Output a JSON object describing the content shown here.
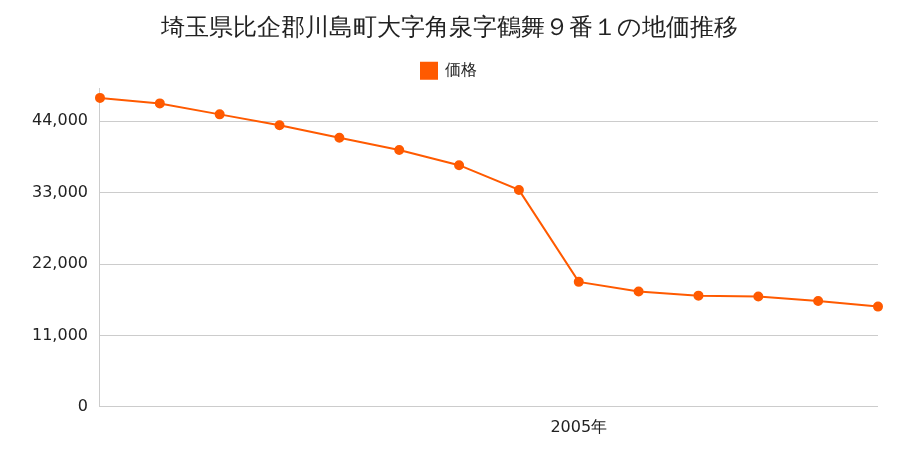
{
  "chart_data": {
    "type": "line",
    "title": "埼玉県比企郡川島町大字角泉字鶴舞９番１の地価推移",
    "categories": [
      null,
      null,
      null,
      null,
      null,
      null,
      null,
      null,
      "2005年",
      null,
      null,
      null,
      null,
      null
    ],
    "series": [
      {
        "name": "価格",
        "color": "#ff5a00",
        "marker": "circle",
        "values": [
          47600,
          46750,
          45060,
          43370,
          41460,
          39560,
          37230,
          33420,
          19250,
          17770,
          17130,
          17000,
          16290,
          15440
        ]
      }
    ],
    "ylim": [
      0,
      49000
    ],
    "yticks": [
      0,
      {
        "value": 11000,
        "label": "11,000"
      },
      {
        "value": 22000,
        "label": "22,000"
      },
      {
        "value": 33000,
        "label": "33,000"
      },
      {
        "value": 44000,
        "label": "44,000"
      }
    ],
    "grid": true,
    "legend": "top"
  }
}
